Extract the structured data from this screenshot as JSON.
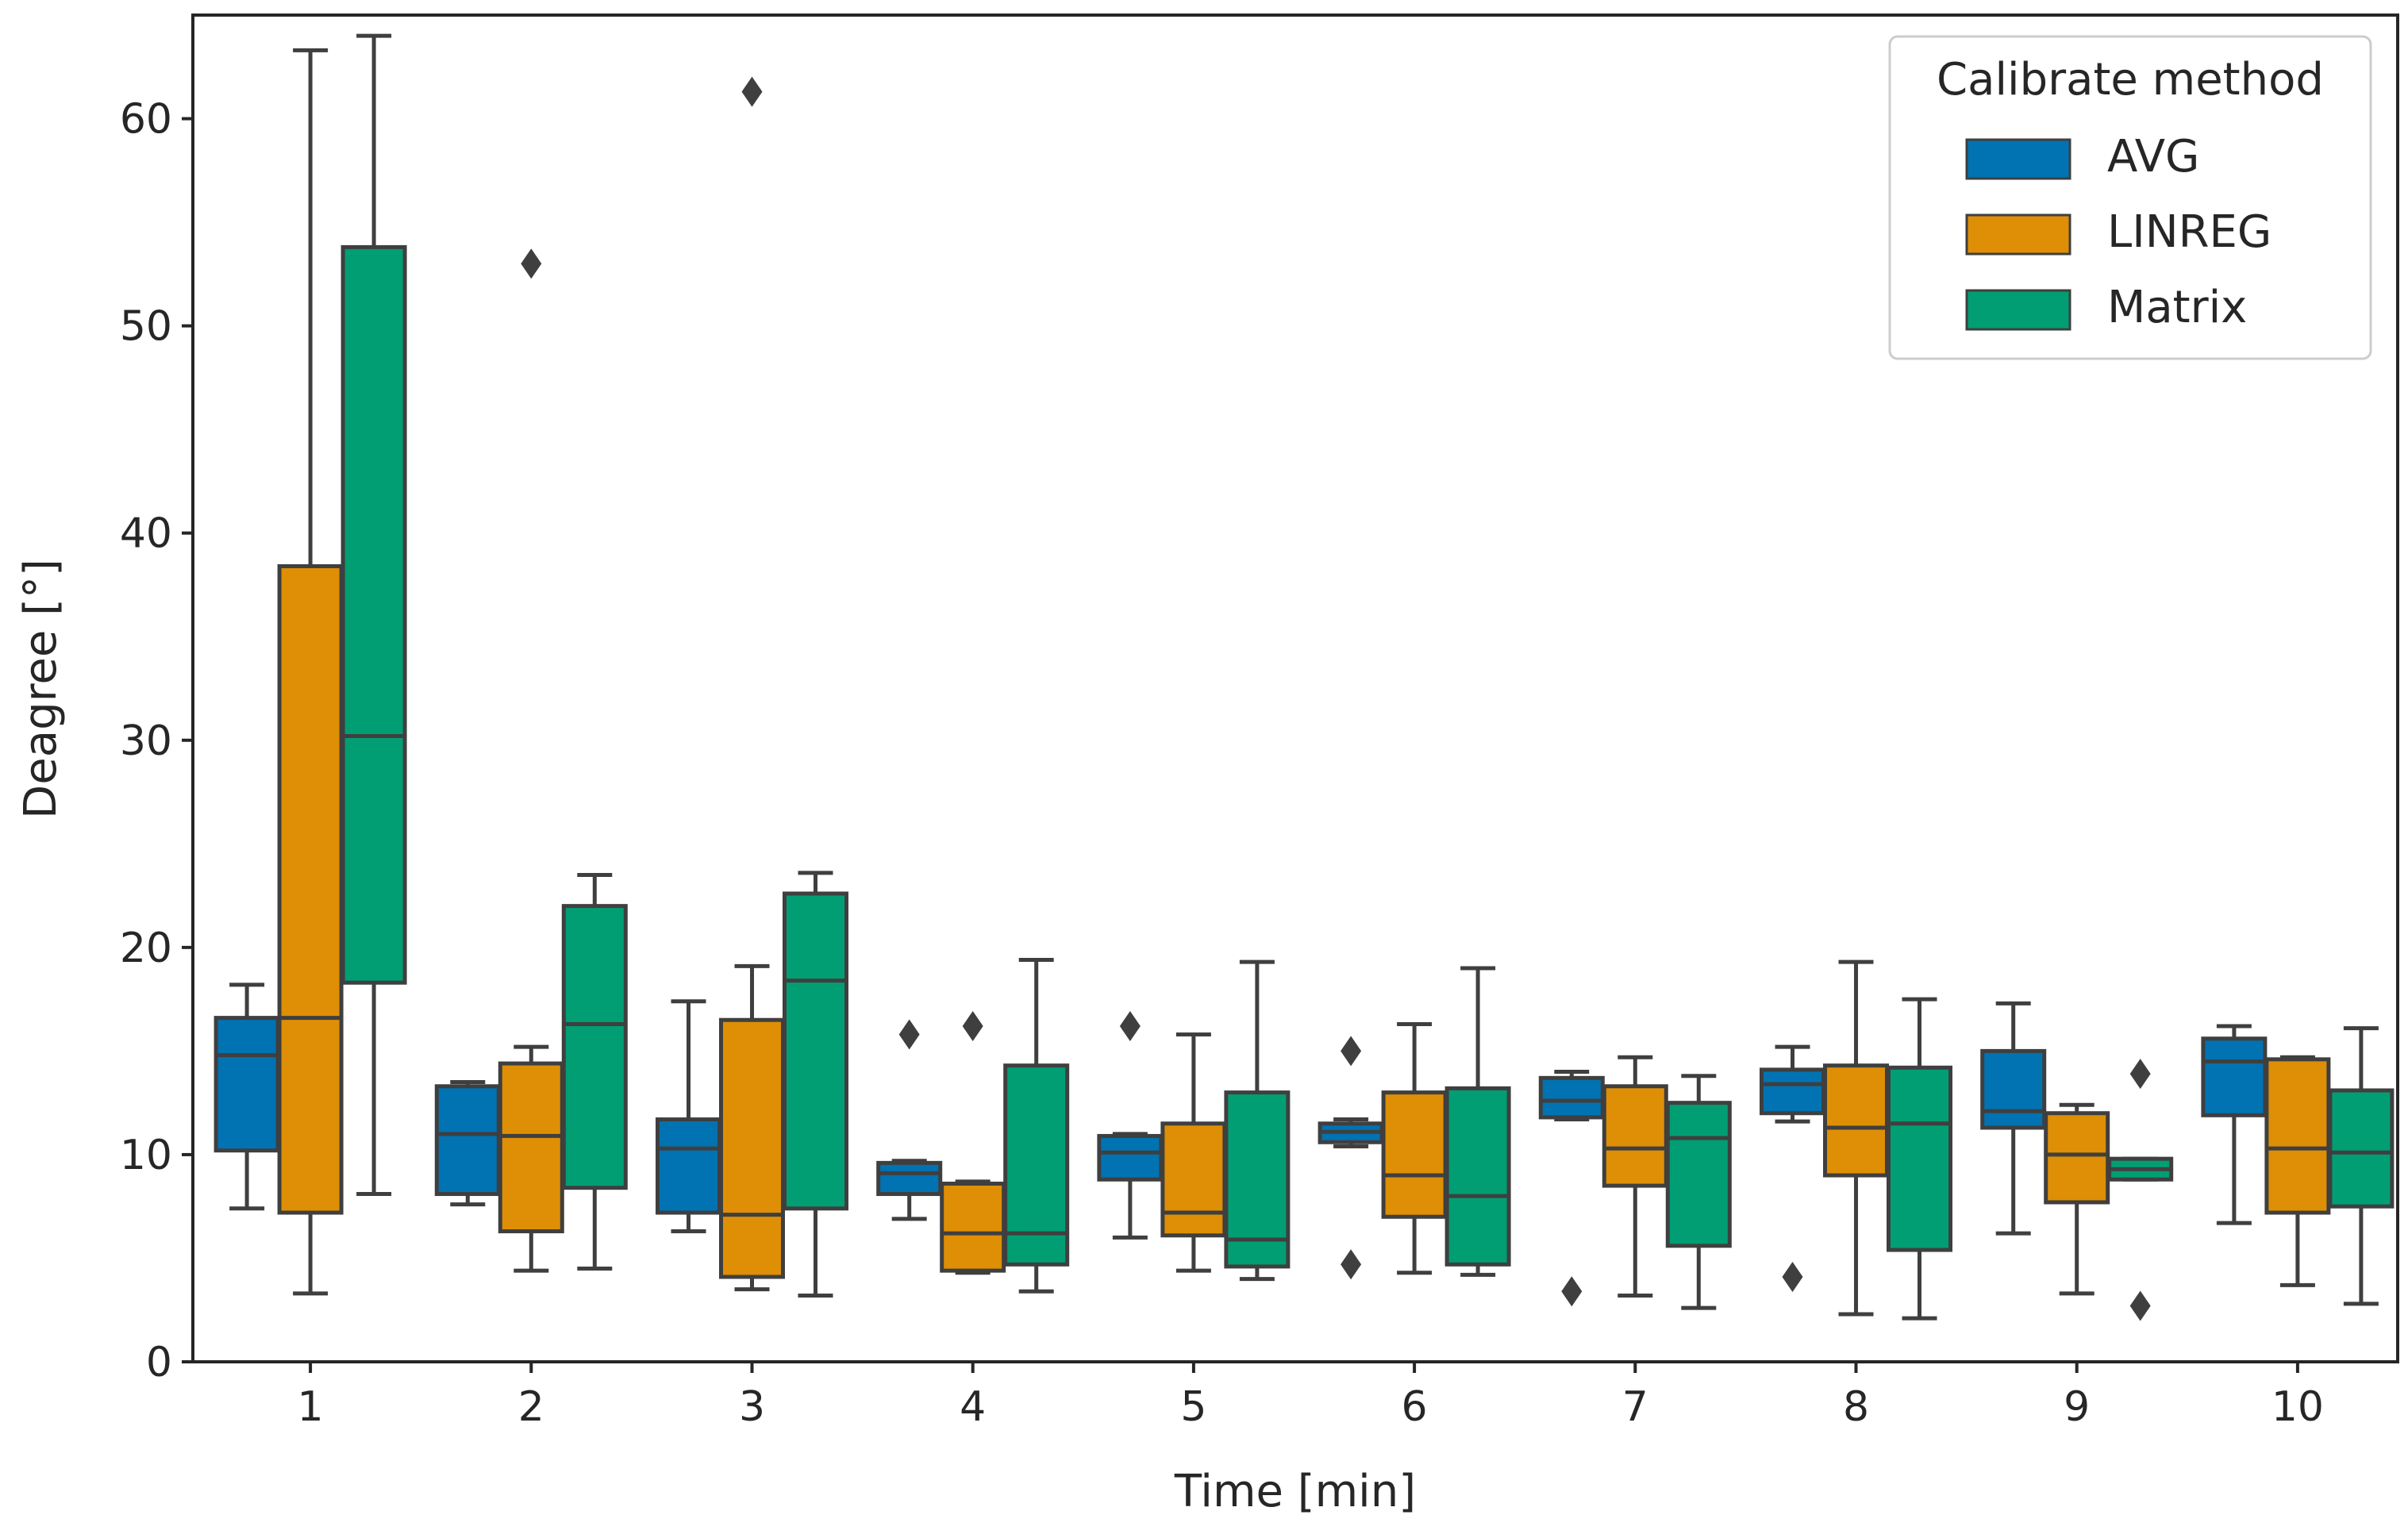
{
  "chart_data": {
    "type": "boxplot",
    "xlabel": "Time [min]",
    "ylabel": "Deagree [°]",
    "ylim": [
      0,
      65
    ],
    "yticks": [
      0,
      10,
      20,
      30,
      40,
      50,
      60
    ],
    "categories": [
      "1",
      "2",
      "3",
      "4",
      "5",
      "6",
      "7",
      "8",
      "9",
      "10"
    ],
    "legend": {
      "title": "Calibrate method",
      "placement": "top-right"
    },
    "series": [
      {
        "name": "AVG",
        "color": "#0173b2",
        "boxes": [
          {
            "q1": 10.2,
            "median": 14.8,
            "q3": 16.6,
            "whisker_low": 7.4,
            "whisker_high": 18.2,
            "outliers": []
          },
          {
            "q1": 8.1,
            "median": 11.0,
            "q3": 13.3,
            "whisker_low": 7.6,
            "whisker_high": 13.5,
            "outliers": []
          },
          {
            "q1": 7.2,
            "median": 10.3,
            "q3": 11.7,
            "whisker_low": 6.3,
            "whisker_high": 17.4,
            "outliers": []
          },
          {
            "q1": 8.1,
            "median": 9.1,
            "q3": 9.6,
            "whisker_low": 6.9,
            "whisker_high": 9.7,
            "outliers": [
              15.8
            ]
          },
          {
            "q1": 8.8,
            "median": 10.1,
            "q3": 10.9,
            "whisker_low": 6.0,
            "whisker_high": 11.0,
            "outliers": [
              16.2
            ]
          },
          {
            "q1": 10.6,
            "median": 11.1,
            "q3": 11.5,
            "whisker_low": 10.4,
            "whisker_high": 11.7,
            "outliers": [
              15.0,
              4.7
            ]
          },
          {
            "q1": 11.8,
            "median": 12.6,
            "q3": 13.7,
            "whisker_low": 11.7,
            "whisker_high": 14.0,
            "outliers": [
              3.4
            ]
          },
          {
            "q1": 12.0,
            "median": 13.4,
            "q3": 14.1,
            "whisker_low": 11.6,
            "whisker_high": 15.2,
            "outliers": [
              4.1
            ]
          },
          {
            "q1": 11.3,
            "median": 12.1,
            "q3": 15.0,
            "whisker_low": 6.2,
            "whisker_high": 17.3,
            "outliers": []
          },
          {
            "q1": 11.9,
            "median": 14.5,
            "q3": 15.6,
            "whisker_low": 6.7,
            "whisker_high": 16.2,
            "outliers": []
          }
        ]
      },
      {
        "name": "LINREG",
        "color": "#de8f05",
        "boxes": [
          {
            "q1": 7.2,
            "median": 16.6,
            "q3": 38.4,
            "whisker_low": 3.3,
            "whisker_high": 63.3,
            "outliers": []
          },
          {
            "q1": 6.3,
            "median": 10.9,
            "q3": 14.4,
            "whisker_low": 4.4,
            "whisker_high": 15.2,
            "outliers": [
              53.0
            ]
          },
          {
            "q1": 4.1,
            "median": 7.1,
            "q3": 16.5,
            "whisker_low": 3.5,
            "whisker_high": 19.1,
            "outliers": [
              61.3
            ]
          },
          {
            "q1": 4.4,
            "median": 6.2,
            "q3": 8.6,
            "whisker_low": 4.3,
            "whisker_high": 8.7,
            "outliers": [
              16.2
            ]
          },
          {
            "q1": 6.1,
            "median": 7.2,
            "q3": 11.5,
            "whisker_low": 4.4,
            "whisker_high": 15.8,
            "outliers": []
          },
          {
            "q1": 7.0,
            "median": 9.0,
            "q3": 13.0,
            "whisker_low": 4.3,
            "whisker_high": 16.3,
            "outliers": []
          },
          {
            "q1": 8.5,
            "median": 10.3,
            "q3": 13.3,
            "whisker_low": 3.2,
            "whisker_high": 14.7,
            "outliers": []
          },
          {
            "q1": 9.0,
            "median": 11.3,
            "q3": 14.3,
            "whisker_low": 2.3,
            "whisker_high": 19.3,
            "outliers": []
          },
          {
            "q1": 7.7,
            "median": 10.0,
            "q3": 12.0,
            "whisker_low": 3.3,
            "whisker_high": 12.4,
            "outliers": []
          },
          {
            "q1": 7.2,
            "median": 10.3,
            "q3": 14.6,
            "whisker_low": 3.7,
            "whisker_high": 14.7,
            "outliers": []
          }
        ]
      },
      {
        "name": "Matrix",
        "color": "#029e73",
        "boxes": [
          {
            "q1": 18.3,
            "median": 30.2,
            "q3": 53.8,
            "whisker_low": 8.1,
            "whisker_high": 64.0,
            "outliers": []
          },
          {
            "q1": 8.4,
            "median": 16.3,
            "q3": 22.0,
            "whisker_low": 4.5,
            "whisker_high": 23.5,
            "outliers": []
          },
          {
            "q1": 7.4,
            "median": 18.4,
            "q3": 22.6,
            "whisker_low": 3.2,
            "whisker_high": 23.6,
            "outliers": []
          },
          {
            "q1": 4.7,
            "median": 6.2,
            "q3": 14.3,
            "whisker_low": 3.4,
            "whisker_high": 19.4,
            "outliers": []
          },
          {
            "q1": 4.6,
            "median": 5.9,
            "q3": 13.0,
            "whisker_low": 4.0,
            "whisker_high": 19.3,
            "outliers": []
          },
          {
            "q1": 4.7,
            "median": 8.0,
            "q3": 13.2,
            "whisker_low": 4.2,
            "whisker_high": 19.0,
            "outliers": []
          },
          {
            "q1": 5.6,
            "median": 10.8,
            "q3": 12.5,
            "whisker_low": 2.6,
            "whisker_high": 13.8,
            "outliers": []
          },
          {
            "q1": 5.4,
            "median": 11.5,
            "q3": 14.2,
            "whisker_low": 2.1,
            "whisker_high": 17.5,
            "outliers": []
          },
          {
            "q1": 8.8,
            "median": 9.3,
            "q3": 9.8,
            "whisker_low": 8.8,
            "whisker_high": 9.8,
            "outliers": [
              13.9,
              2.7
            ]
          },
          {
            "q1": 7.5,
            "median": 10.1,
            "q3": 13.1,
            "whisker_low": 2.8,
            "whisker_high": 16.1,
            "outliers": []
          }
        ]
      }
    ]
  }
}
